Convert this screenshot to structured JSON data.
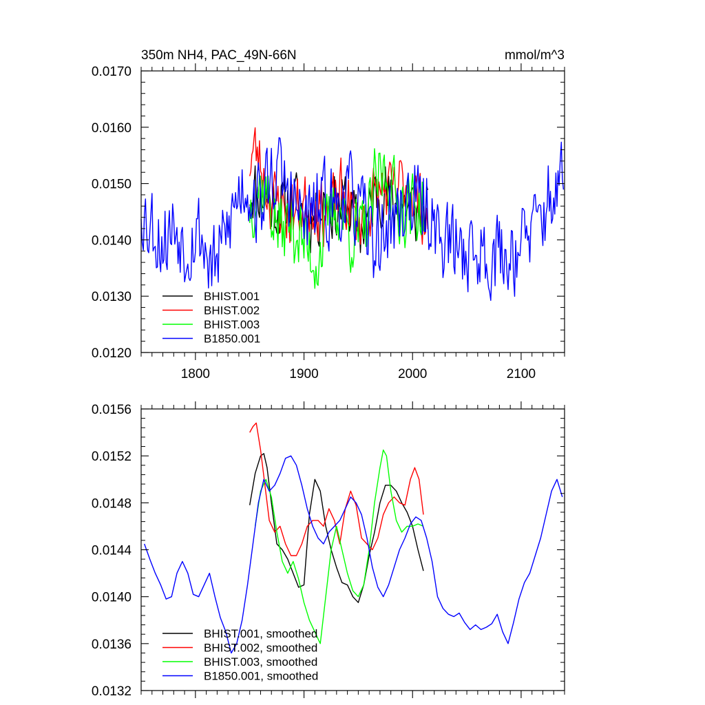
{
  "chart_data": [
    {
      "type": "line",
      "title": "350m NH4, PAC_49N-66N",
      "title_right": "mmol/m^3",
      "xlabel": "",
      "ylabel": "",
      "xlim": [
        1750,
        2140
      ],
      "ylim": [
        0.012,
        0.017
      ],
      "x_ticks": [
        1800,
        1900,
        2000,
        2100
      ],
      "x_tick_labels": [
        "1800",
        "1900",
        "2000",
        "2100"
      ],
      "y_ticks": [
        0.012,
        0.013,
        0.014,
        0.015,
        0.016,
        0.017
      ],
      "y_tick_labels": [
        "0.0120",
        "0.0130",
        "0.0140",
        "0.0150",
        "0.0160",
        "0.0170"
      ],
      "legend_position": "bottom-left",
      "series": [
        {
          "name": "BHIST.001",
          "color": "#000000",
          "x_range": [
            1850,
            2014
          ],
          "base": [
            0.0149,
            0.01488,
            0.01484,
            0.01478,
            0.0147,
            0.01462,
            0.01456,
            0.01455,
            0.01465,
            0.0147,
            0.01462,
            0.01452,
            0.01443,
            0.01436,
            0.0144,
            0.0146,
            0.01478,
            0.01462,
            0.0145,
            0.01462,
            0.0147,
            0.0145,
            0.01435,
            0.0142,
            0.0143,
            0.0145,
            0.01478,
            0.0149,
            0.01486,
            0.0147,
            0.0146,
            0.01465,
            0.01466,
            0.01462,
            0.01456,
            0.01445,
            0.01437,
            0.0144
          ],
          "noise": 0.0007,
          "seed": 11
        },
        {
          "name": "BHIST.002",
          "color": "#ff0000",
          "x_range": [
            1850,
            2014
          ],
          "base": [
            0.0154,
            0.0156,
            0.01545,
            0.0151,
            0.0148,
            0.01468,
            0.0147,
            0.01455,
            0.01445,
            0.01448,
            0.01455,
            0.01462,
            0.01466,
            0.01466,
            0.01462,
            0.01455,
            0.01452,
            0.0146,
            0.01475,
            0.0148,
            0.0147,
            0.01455,
            0.0144,
            0.01435,
            0.0144,
            0.01458,
            0.01475,
            0.01485,
            0.0149,
            0.01482,
            0.0148,
            0.01495,
            0.01505,
            0.01498,
            0.01482,
            0.0147,
            0.01455,
            0.0143
          ],
          "noise": 0.0007,
          "seed": 23
        },
        {
          "name": "BHIST.003",
          "color": "#00ff00",
          "x_range": [
            1850,
            2010
          ],
          "base": [
            0.0146,
            0.0148,
            0.01496,
            0.0149,
            0.0147,
            0.0144,
            0.0142,
            0.01418,
            0.01426,
            0.0143,
            0.0141,
            0.01395,
            0.01385,
            0.0137,
            0.01365,
            0.0139,
            0.0142,
            0.0145,
            0.0146,
            0.01448,
            0.0143,
            0.0141,
            0.01405,
            0.0141,
            0.01425,
            0.0145,
            0.0149,
            0.01515,
            0.0152,
            0.01505,
            0.0148,
            0.01465,
            0.0146,
            0.01462,
            0.01455,
            0.0146,
            0.0145
          ],
          "noise": 0.0008,
          "seed": 37
        },
        {
          "name": "B1850.001",
          "color": "#0000ff",
          "x_range": [
            1750,
            2139
          ],
          "base": [
            0.0147,
            0.0144,
            0.01432,
            0.0143,
            0.0141,
            0.014,
            0.01398,
            0.01405,
            0.0142,
            0.0143,
            0.0141,
            0.01395,
            0.01392,
            0.014,
            0.0141,
            0.0142,
            0.014,
            0.01375,
            0.0136,
            0.0135,
            0.01365,
            0.0139,
            0.0141,
            0.0143,
            0.0145,
            0.01475,
            0.01495,
            0.015,
            0.0149,
            0.0148,
            0.0147,
            0.01465,
            0.0148,
            0.015,
            0.01515,
            0.0152,
            0.01515,
            0.01505,
            0.0149,
            0.01475,
            0.0146,
            0.01448,
            0.0144,
            0.01435,
            0.01438,
            0.01446,
            0.01455,
            0.01462,
            0.01465,
            0.0146,
            0.01458,
            0.01462,
            0.0147,
            0.01478,
            0.0148,
            0.01475,
            0.01465,
            0.0145,
            0.01435,
            0.01418,
            0.01405,
            0.01398,
            0.014,
            0.01408,
            0.01418,
            0.01428,
            0.01438,
            0.01448,
            0.01458,
            0.01468,
            0.01472,
            0.0147,
            0.01462,
            0.01458,
            0.01455,
            0.0145,
            0.0144,
            0.0142,
            0.01405,
            0.014,
            0.01395,
            0.01392,
            0.01388,
            0.01386,
            0.01385,
            0.01382,
            0.0138,
            0.01378,
            0.01375,
            0.01373,
            0.01372,
            0.01374,
            0.01376,
            0.01378,
            0.01376,
            0.0137,
            0.01372,
            0.0138,
            0.0139,
            0.01395,
            0.01398,
            0.01405,
            0.01415,
            0.01425,
            0.01435,
            0.0145,
            0.01465,
            0.01478,
            0.0149,
            0.01495,
            0.0149
          ],
          "noise": 0.0009,
          "seed": 53
        }
      ]
    },
    {
      "type": "line",
      "title": "",
      "xlabel": "",
      "ylabel": "",
      "xlim": [
        1750,
        2140
      ],
      "ylim": [
        0.0132,
        0.0156
      ],
      "x_ticks": [
        1800,
        1900,
        2000,
        2100
      ],
      "x_tick_labels": [],
      "y_ticks": [
        0.0132,
        0.0136,
        0.014,
        0.0144,
        0.0148,
        0.0152,
        0.0156
      ],
      "y_tick_labels": [
        "0.0132",
        "0.0136",
        "0.0140",
        "0.0144",
        "0.0148",
        "0.0152",
        "0.0156"
      ],
      "legend_position": "bottom-left",
      "series": [
        {
          "name": "BHIST.001, smoothed",
          "color": "#000000",
          "x": [
            1850,
            1855,
            1860,
            1863,
            1866,
            1870,
            1875,
            1880,
            1885,
            1890,
            1895,
            1900,
            1905,
            1910,
            1915,
            1920,
            1925,
            1930,
            1935,
            1940,
            1945,
            1950,
            1955,
            1960,
            1965,
            1970,
            1975,
            1980,
            1985,
            1990,
            1995,
            2000,
            2005,
            2010
          ],
          "y": [
            0.01478,
            0.01505,
            0.0152,
            0.01522,
            0.0151,
            0.0148,
            0.01445,
            0.0144,
            0.01432,
            0.0142,
            0.01408,
            0.0141,
            0.0147,
            0.015,
            0.0149,
            0.0146,
            0.0144,
            0.01425,
            0.01412,
            0.0141,
            0.014,
            0.01395,
            0.0141,
            0.01435,
            0.01455,
            0.0148,
            0.01495,
            0.01495,
            0.0149,
            0.0148,
            0.01472,
            0.0146,
            0.0144,
            0.01422
          ]
        },
        {
          "name": "BHIST.002, smoothed",
          "color": "#ff0000",
          "x": [
            1850,
            1853,
            1856,
            1860,
            1864,
            1868,
            1873,
            1878,
            1883,
            1888,
            1893,
            1898,
            1903,
            1908,
            1913,
            1918,
            1923,
            1928,
            1933,
            1938,
            1943,
            1948,
            1953,
            1958,
            1963,
            1968,
            1973,
            1978,
            1983,
            1988,
            1993,
            1998,
            2002,
            2006,
            2010
          ],
          "y": [
            0.0154,
            0.01545,
            0.01548,
            0.01525,
            0.01495,
            0.01465,
            0.01455,
            0.0146,
            0.01445,
            0.01435,
            0.01435,
            0.01445,
            0.0146,
            0.01465,
            0.01465,
            0.0146,
            0.01475,
            0.01465,
            0.01445,
            0.01475,
            0.0149,
            0.01478,
            0.0145,
            0.01445,
            0.0144,
            0.0145,
            0.0147,
            0.0148,
            0.01485,
            0.0148,
            0.01478,
            0.015,
            0.0151,
            0.015,
            0.0147
          ]
        },
        {
          "name": "BHIST.003, smoothed",
          "color": "#00ff00",
          "x": [
            1855,
            1860,
            1865,
            1870,
            1875,
            1880,
            1885,
            1890,
            1895,
            1900,
            1905,
            1910,
            1915,
            1920,
            1925,
            1930,
            1935,
            1940,
            1945,
            1950,
            1955,
            1960,
            1965,
            1970,
            1973,
            1976,
            1980,
            1985,
            1990,
            1995,
            2000,
            2005,
            2010
          ],
          "y": [
            0.0146,
            0.0149,
            0.015,
            0.01485,
            0.01455,
            0.0143,
            0.0142,
            0.0143,
            0.01415,
            0.01395,
            0.0138,
            0.0137,
            0.0136,
            0.014,
            0.0144,
            0.0146,
            0.0144,
            0.0142,
            0.01405,
            0.014,
            0.0141,
            0.0144,
            0.0148,
            0.0151,
            0.01525,
            0.0152,
            0.0149,
            0.01465,
            0.01455,
            0.0146,
            0.0146,
            0.01462,
            0.0146
          ]
        },
        {
          "name": "B1850.001, smoothed",
          "color": "#0000ff",
          "x": [
            1753,
            1758,
            1763,
            1768,
            1773,
            1778,
            1783,
            1788,
            1793,
            1798,
            1803,
            1808,
            1813,
            1818,
            1823,
            1828,
            1833,
            1838,
            1843,
            1848,
            1853,
            1858,
            1863,
            1868,
            1873,
            1878,
            1883,
            1888,
            1893,
            1898,
            1903,
            1908,
            1913,
            1918,
            1923,
            1928,
            1933,
            1938,
            1943,
            1948,
            1953,
            1958,
            1963,
            1968,
            1973,
            1978,
            1983,
            1988,
            1993,
            1998,
            2003,
            2008,
            2013,
            2018,
            2023,
            2028,
            2033,
            2038,
            2043,
            2048,
            2053,
            2058,
            2063,
            2068,
            2073,
            2078,
            2083,
            2088,
            2093,
            2098,
            2103,
            2108,
            2113,
            2118,
            2123,
            2128,
            2133,
            2138
          ],
          "y": [
            0.01445,
            0.01432,
            0.0142,
            0.0141,
            0.01398,
            0.014,
            0.0142,
            0.0143,
            0.0142,
            0.01402,
            0.014,
            0.0141,
            0.0142,
            0.014,
            0.01382,
            0.0137,
            0.01352,
            0.0136,
            0.0138,
            0.0141,
            0.01445,
            0.0148,
            0.015,
            0.0149,
            0.01495,
            0.01505,
            0.01518,
            0.0152,
            0.01512,
            0.01495,
            0.01475,
            0.0146,
            0.0145,
            0.01445,
            0.01455,
            0.0146,
            0.01465,
            0.01475,
            0.01485,
            0.0148,
            0.0147,
            0.0145,
            0.01425,
            0.01408,
            0.014,
            0.0141,
            0.01425,
            0.0144,
            0.0145,
            0.01462,
            0.01468,
            0.01465,
            0.0145,
            0.0143,
            0.014,
            0.0139,
            0.01385,
            0.01383,
            0.01386,
            0.01378,
            0.01372,
            0.01376,
            0.01372,
            0.01374,
            0.01377,
            0.01385,
            0.0137,
            0.0136,
            0.01378,
            0.01398,
            0.01412,
            0.0142,
            0.01435,
            0.0145,
            0.0147,
            0.0149,
            0.015,
            0.01485
          ]
        }
      ]
    }
  ]
}
